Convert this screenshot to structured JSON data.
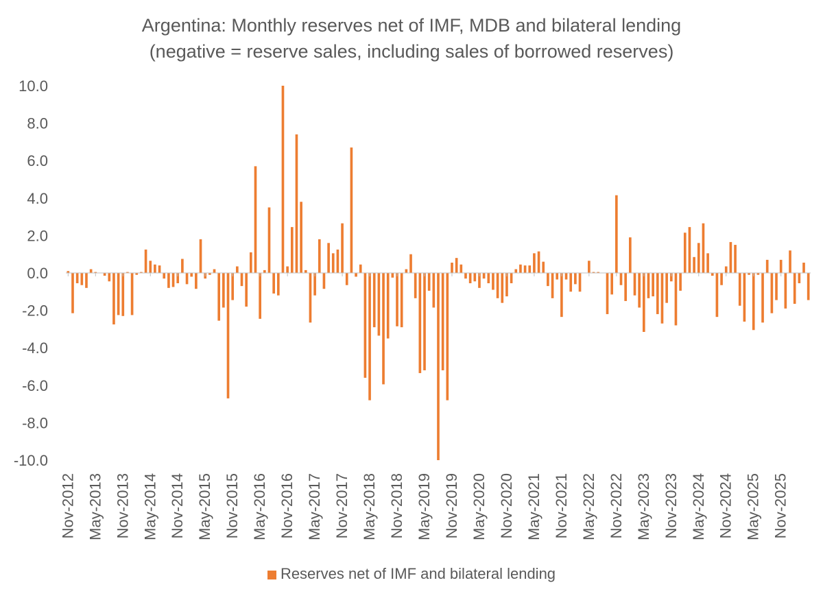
{
  "chart_data": {
    "type": "bar",
    "title": "Argentina: Monthly reserves net of IMF, MDB and bilateral lending",
    "subtitle": "(negative = reserve sales, including sales of borrowed reserves)",
    "ylim": [
      -10,
      10
    ],
    "y_ticks": [
      "10.0",
      "8.0",
      "6.0",
      "4.0",
      "2.0",
      "0.0",
      "-2.0",
      "-4.0",
      "-6.0",
      "-8.0",
      "-10.0"
    ],
    "x_tick_labels": [
      "Nov-2012",
      "May-2013",
      "Nov-2013",
      "May-2014",
      "Nov-2014",
      "May-2015",
      "Nov-2015",
      "May-2016",
      "Nov-2016",
      "May-2017",
      "Nov-2017",
      "May-2018",
      "Nov-2018",
      "May-2019",
      "Nov-2019",
      "May-2020",
      "Nov-2020",
      "May-2021",
      "Nov-2021",
      "May-2022",
      "Nov-2022",
      "May-2023",
      "Nov-2023",
      "May-2024",
      "Nov-2024",
      "May-2025",
      "Nov-2025"
    ],
    "first_period": "Nov-2012",
    "grid": false,
    "legend_position": "bottom",
    "series": [
      {
        "name": "Reserves net of IMF and bilateral lending",
        "color": "#ED7D31",
        "values": [
          0.1,
          -2.15,
          -0.55,
          -0.65,
          -0.8,
          0.2,
          0.05,
          0.0,
          -0.15,
          -0.45,
          -2.75,
          -2.25,
          -2.3,
          0.05,
          -2.25,
          -0.1,
          0.05,
          1.25,
          0.65,
          0.45,
          0.4,
          -0.3,
          -0.8,
          -0.75,
          -0.55,
          0.75,
          -0.6,
          -0.2,
          -0.85,
          1.8,
          -0.3,
          -0.1,
          0.2,
          -2.55,
          -1.85,
          -6.7,
          -1.45,
          0.35,
          -0.7,
          -1.8,
          1.1,
          5.7,
          -2.45,
          0.15,
          3.5,
          -1.1,
          -1.2,
          10.0,
          0.35,
          2.45,
          7.4,
          3.8,
          0.15,
          -2.65,
          -1.2,
          1.8,
          -0.85,
          1.6,
          1.05,
          1.25,
          2.65,
          -0.65,
          6.7,
          -0.2,
          0.45,
          -5.6,
          -6.8,
          -2.9,
          -3.35,
          -5.95,
          -3.5,
          -0.25,
          -2.85,
          -2.9,
          0.2,
          1.0,
          -1.35,
          -5.35,
          -5.2,
          -0.95,
          -1.85,
          -10.0,
          -5.2,
          -6.8,
          0.55,
          0.8,
          0.45,
          -0.3,
          -0.55,
          -0.45,
          -0.8,
          -0.3,
          -0.55,
          -0.9,
          -1.35,
          -1.6,
          -1.25,
          -0.55,
          0.2,
          0.45,
          0.4,
          0.4,
          1.05,
          1.15,
          0.6,
          -0.7,
          -1.35,
          -0.35,
          -2.35,
          -0.35,
          -1.0,
          -0.6,
          -1.0,
          0.0,
          0.65,
          0.05,
          0.05,
          0.0,
          -2.2,
          -1.15,
          4.15,
          -0.65,
          -1.5,
          1.9,
          -1.2,
          -1.85,
          -3.15,
          -1.35,
          -1.25,
          -2.2,
          -2.7,
          -1.6,
          -0.45,
          -2.8,
          -0.95,
          2.15,
          2.45,
          0.85,
          1.6,
          2.65,
          1.05,
          -0.15,
          -2.35,
          -0.65,
          0.35,
          1.65,
          1.5,
          -1.75,
          -2.6,
          -0.1,
          -3.05,
          -0.1,
          -2.65,
          0.7,
          -2.15,
          -1.45,
          0.7,
          -1.9,
          1.2,
          -1.65,
          -0.55,
          0.55,
          -1.45
        ]
      }
    ]
  }
}
